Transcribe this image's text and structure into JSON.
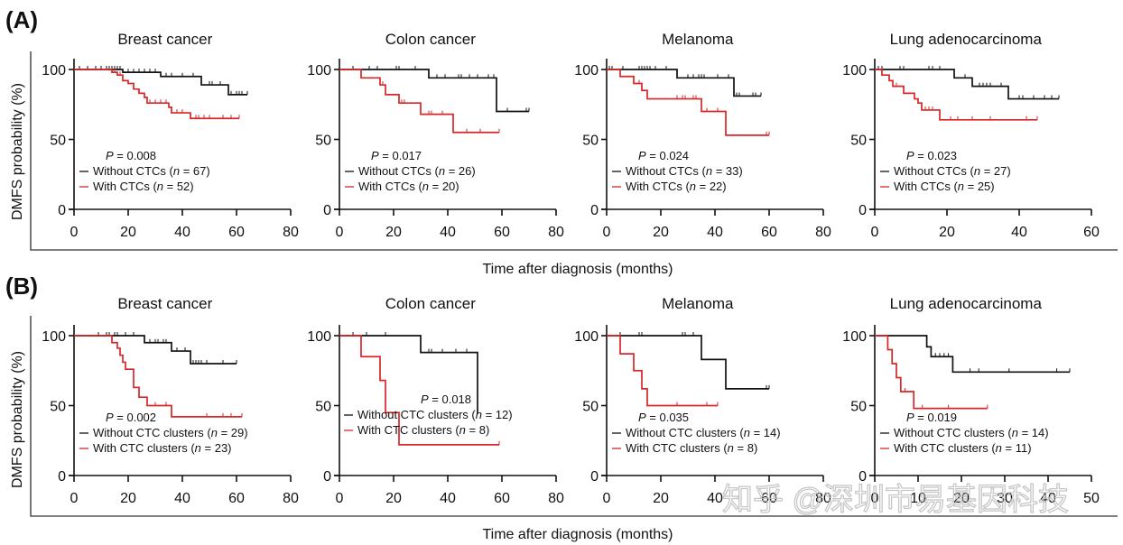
{
  "figure": {
    "panel_labels": [
      "(A)",
      "(B)"
    ],
    "ylabel": "DMFS probability (%)",
    "xlabel": "Time after diagnosis  (months)",
    "watermark": "知乎 @深圳市易基因科技",
    "colors": {
      "without": "#111111",
      "with": "#d62728"
    }
  },
  "chart_data": [
    {
      "type": "line",
      "subtype": "kaplan-meier",
      "row": "A",
      "title": "Breast cancer",
      "xlim": [
        0,
        80
      ],
      "xticks": [
        0,
        20,
        40,
        60,
        80
      ],
      "ylim": [
        0,
        100
      ],
      "yticks": [
        0,
        50,
        100
      ],
      "p_value": "0.008",
      "series": [
        {
          "name": "Without CTCs",
          "n": "67",
          "group": "without",
          "steps": [
            [
              0,
              100
            ],
            [
              18,
              98
            ],
            [
              32,
              95
            ],
            [
              47,
              89
            ],
            [
              57,
              82
            ],
            [
              64,
              82
            ]
          ],
          "censored": [
            2,
            5,
            8,
            10,
            12,
            13,
            14,
            15,
            16,
            17,
            20,
            22,
            24,
            26,
            28,
            30,
            34,
            36,
            40,
            44,
            50,
            51,
            54,
            58,
            60,
            61,
            62,
            64
          ]
        },
        {
          "name": "With CTCs",
          "n": "52",
          "group": "with",
          "steps": [
            [
              0,
              100
            ],
            [
              14,
              98
            ],
            [
              16,
              96
            ],
            [
              18,
              92
            ],
            [
              20,
              90
            ],
            [
              22,
              86
            ],
            [
              24,
              83
            ],
            [
              26,
              80
            ],
            [
              27,
              76
            ],
            [
              35,
              73
            ],
            [
              36,
              69
            ],
            [
              43,
              65
            ],
            [
              61,
              65
            ]
          ],
          "censored": [
            15,
            17,
            28,
            30,
            32,
            34,
            38,
            40,
            45,
            46,
            48,
            50,
            55,
            58,
            61
          ]
        }
      ],
      "legend_labels": {
        "without": "Without CTCs",
        "with": "With CTCs"
      }
    },
    {
      "type": "line",
      "subtype": "kaplan-meier",
      "row": "A",
      "title": "Colon cancer",
      "xlim": [
        0,
        80
      ],
      "xticks": [
        0,
        20,
        40,
        60,
        80
      ],
      "ylim": [
        0,
        100
      ],
      "yticks": [
        0,
        50,
        100
      ],
      "p_value": "0.017",
      "series": [
        {
          "name": "Without CTCs",
          "n": "26",
          "group": "without",
          "steps": [
            [
              0,
              100
            ],
            [
              33,
              94
            ],
            [
              58,
              70
            ],
            [
              70,
              70
            ]
          ],
          "censored": [
            5,
            11,
            14,
            21,
            22,
            28,
            36,
            39,
            44,
            45,
            48,
            51,
            55,
            57,
            62,
            69,
            70
          ]
        },
        {
          "name": "With CTCs",
          "n": "20",
          "group": "with",
          "steps": [
            [
              0,
              100
            ],
            [
              8,
              94
            ],
            [
              15,
              89
            ],
            [
              17,
              82
            ],
            [
              22,
              76
            ],
            [
              30,
              68
            ],
            [
              42,
              55
            ],
            [
              59,
              55
            ]
          ],
          "censored": [
            16,
            23,
            24,
            33,
            34,
            38,
            47,
            52,
            59
          ]
        }
      ],
      "legend_labels": {
        "without": "Without CTCs",
        "with": "With CTCs"
      }
    },
    {
      "type": "line",
      "subtype": "kaplan-meier",
      "row": "A",
      "title": "Melanoma",
      "xlim": [
        0,
        80
      ],
      "xticks": [
        0,
        20,
        40,
        60,
        80
      ],
      "ylim": [
        0,
        100
      ],
      "yticks": [
        0,
        50,
        100
      ],
      "p_value": "0.024",
      "series": [
        {
          "name": "Without CTCs",
          "n": "33",
          "group": "without",
          "steps": [
            [
              0,
              100
            ],
            [
              26,
              94
            ],
            [
              47,
              81
            ],
            [
              57,
              81
            ]
          ],
          "censored": [
            1,
            2,
            6,
            12,
            13,
            14,
            15,
            16,
            18,
            22,
            30,
            32,
            34,
            35,
            36,
            41,
            45,
            48,
            49,
            54,
            55,
            57
          ]
        },
        {
          "name": "With CTCs",
          "n": "22",
          "group": "with",
          "steps": [
            [
              0,
              100
            ],
            [
              5,
              95
            ],
            [
              10,
              90
            ],
            [
              13,
              85
            ],
            [
              15,
              79
            ],
            [
              35,
              70
            ],
            [
              44,
              53
            ],
            [
              60,
              53
            ]
          ],
          "censored": [
            12,
            26,
            28,
            29,
            32,
            33,
            37,
            41,
            59,
            60
          ]
        }
      ],
      "legend_labels": {
        "without": "Without CTCs",
        "with": "With CTCs"
      }
    },
    {
      "type": "line",
      "subtype": "kaplan-meier",
      "row": "A",
      "title": "Lung adenocarcinoma",
      "xlim": [
        0,
        60
      ],
      "xticks": [
        0,
        20,
        40,
        60
      ],
      "ylim": [
        0,
        100
      ],
      "yticks": [
        0,
        50,
        100
      ],
      "p_value": "0.023",
      "series": [
        {
          "name": "Without CTCs",
          "n": "27",
          "group": "without",
          "steps": [
            [
              0,
              100
            ],
            [
              22,
              94
            ],
            [
              27,
              88
            ],
            [
              37,
              79
            ],
            [
              51,
              79
            ]
          ],
          "censored": [
            1,
            2,
            7,
            8,
            15,
            16,
            18,
            25,
            29,
            30,
            31,
            32,
            35,
            40,
            41,
            44,
            47,
            49,
            51
          ]
        },
        {
          "name": "With CTCs",
          "n": "25",
          "group": "with",
          "steps": [
            [
              0,
              100
            ],
            [
              2,
              96
            ],
            [
              4,
              92
            ],
            [
              5,
              88
            ],
            [
              8,
              83
            ],
            [
              11,
              79
            ],
            [
              12,
              76
            ],
            [
              13,
              71
            ],
            [
              18,
              64
            ],
            [
              45,
              64
            ]
          ],
          "censored": [
            6,
            11,
            14,
            15,
            16,
            21,
            23,
            27,
            32,
            42,
            45
          ]
        }
      ],
      "legend_labels": {
        "without": "Without CTCs",
        "with": "With CTCs"
      }
    },
    {
      "type": "line",
      "subtype": "kaplan-meier",
      "row": "B",
      "title": "Breast cancer",
      "xlim": [
        0,
        80
      ],
      "xticks": [
        0,
        20,
        40,
        60,
        80
      ],
      "ylim": [
        0,
        100
      ],
      "yticks": [
        0,
        50,
        100
      ],
      "p_value": "0.002",
      "series": [
        {
          "name": "Without CTC clusters",
          "n": "29",
          "group": "without",
          "steps": [
            [
              0,
              100
            ],
            [
              26,
              95
            ],
            [
              36,
              89
            ],
            [
              43,
              80
            ],
            [
              60,
              80
            ]
          ],
          "censored": [
            9,
            12,
            13,
            15,
            16,
            19,
            22,
            28,
            30,
            31,
            33,
            34,
            38,
            41,
            44,
            45,
            46,
            47,
            49,
            55,
            60
          ]
        },
        {
          "name": "With CTC clusters",
          "n": "23",
          "group": "with",
          "steps": [
            [
              0,
              100
            ],
            [
              14,
              95
            ],
            [
              16,
              91
            ],
            [
              17,
              86
            ],
            [
              18,
              81
            ],
            [
              19,
              76
            ],
            [
              22,
              63
            ],
            [
              24,
              56
            ],
            [
              27,
              50
            ],
            [
              36,
              42
            ],
            [
              62,
              42
            ]
          ],
          "censored": [
            30,
            34,
            49,
            55,
            58,
            62
          ]
        }
      ],
      "legend_labels": {
        "without": "Without CTC clusters",
        "with": "With CTC clusters"
      }
    },
    {
      "type": "line",
      "subtype": "kaplan-meier",
      "row": "B",
      "title": "Colon cancer",
      "xlim": [
        0,
        80
      ],
      "xticks": [
        0,
        20,
        40,
        60,
        80
      ],
      "ylim": [
        0,
        100
      ],
      "yticks": [
        0,
        50,
        100
      ],
      "p_value": "0.018",
      "series": [
        {
          "name": "Without CTC clusters",
          "n": "12",
          "group": "without",
          "steps": [
            [
              0,
              100
            ],
            [
              30,
              88
            ],
            [
              51,
              88
            ],
            [
              51,
              44
            ]
          ],
          "censored": [
            5,
            10,
            17,
            33,
            34,
            38,
            43,
            47
          ]
        },
        {
          "name": "With CTC clusters",
          "n": "8",
          "group": "with",
          "steps": [
            [
              0,
              100
            ],
            [
              8,
              85
            ],
            [
              15,
              68
            ],
            [
              17,
              45
            ],
            [
              22,
              22
            ],
            [
              59,
              22
            ]
          ],
          "censored": [
            59
          ]
        }
      ],
      "legend_labels": {
        "without": "Without CTC clusters",
        "with": "With CTC clusters"
      }
    },
    {
      "type": "line",
      "subtype": "kaplan-meier",
      "row": "B",
      "title": "Melanoma",
      "xlim": [
        0,
        80
      ],
      "xticks": [
        0,
        20,
        40,
        60,
        80
      ],
      "ylim": [
        0,
        100
      ],
      "yticks": [
        0,
        50,
        100
      ],
      "p_value": "0.035",
      "series": [
        {
          "name": "Without CTC clusters",
          "n": "14",
          "group": "without",
          "steps": [
            [
              0,
              100
            ],
            [
              35,
              83
            ],
            [
              44,
              62
            ],
            [
              60,
              62
            ]
          ],
          "censored": [
            5,
            12,
            13,
            28,
            29,
            32,
            59,
            60
          ]
        },
        {
          "name": "With CTC clusters",
          "n": "8",
          "group": "with",
          "steps": [
            [
              0,
              100
            ],
            [
              5,
              87
            ],
            [
              10,
              75
            ],
            [
              13,
              62
            ],
            [
              15,
              50
            ],
            [
              41,
              50
            ]
          ],
          "censored": [
            26,
            37,
            41
          ]
        }
      ],
      "legend_labels": {
        "without": "Without CTC clusters",
        "with": "With CTC clusters"
      }
    },
    {
      "type": "line",
      "subtype": "kaplan-meier",
      "row": "B",
      "title": "Lung adenocarcinoma",
      "xlim": [
        0,
        50
      ],
      "xticks": [
        0,
        10,
        20,
        30,
        40,
        50
      ],
      "ylim": [
        0,
        100
      ],
      "yticks": [
        0,
        50,
        100
      ],
      "p_value": "0.019",
      "series": [
        {
          "name": "Without CTC clusters",
          "n": "14",
          "group": "without",
          "steps": [
            [
              0,
              100
            ],
            [
              12,
              92
            ],
            [
              13,
              85
            ],
            [
              18,
              74
            ],
            [
              45,
              74
            ]
          ],
          "censored": [
            14,
            15,
            16,
            17,
            22,
            24,
            31,
            42,
            45
          ]
        },
        {
          "name": "With CTC clusters",
          "n": "11",
          "group": "with",
          "steps": [
            [
              0,
              100
            ],
            [
              3,
              90
            ],
            [
              4,
              80
            ],
            [
              5,
              70
            ],
            [
              6,
              60
            ],
            [
              9,
              48
            ],
            [
              26,
              48
            ]
          ],
          "censored": [
            7,
            11,
            17,
            26
          ]
        }
      ],
      "legend_labels": {
        "without": "Without CTC clusters",
        "with": "With CTC clusters"
      }
    }
  ]
}
